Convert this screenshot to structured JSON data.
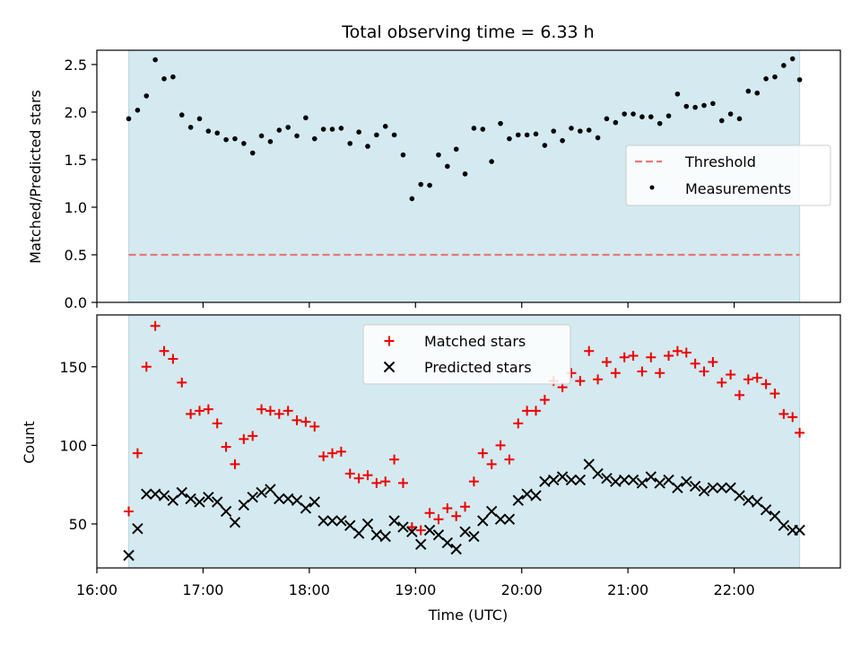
{
  "chart_data": [
    {
      "type": "scatter",
      "title": "Total observing time = 6.33 h",
      "xlabel": "",
      "ylabel": "Matched/Predicted stars",
      "ylim": [
        0,
        2.65
      ],
      "xlim": [
        "16:00",
        "23:00"
      ],
      "yticks": [
        "0.0",
        "0.5",
        "1.0",
        "1.5",
        "2.0",
        "2.5"
      ],
      "ytick_values": [
        0,
        0.5,
        1.0,
        1.5,
        2.0,
        2.5
      ],
      "shaded_span": [
        "16:18",
        "22:37"
      ],
      "shade_color": "#d4eaf0",
      "threshold": {
        "name": "Threshold",
        "value": 0.5,
        "color": "#e87878",
        "style": "dashed",
        "x_range": [
          "16:18",
          "22:37"
        ]
      },
      "legend": {
        "position": "center-right",
        "entries": [
          "Threshold",
          "Measurements"
        ]
      },
      "series": [
        {
          "name": "Measurements",
          "marker": "dot",
          "color": "#000000",
          "x": [
            "16:18",
            "16:23",
            "16:28",
            "16:33",
            "16:38",
            "16:43",
            "16:48",
            "16:53",
            "16:58",
            "17:03",
            "17:08",
            "17:13",
            "17:18",
            "17:23",
            "17:28",
            "17:33",
            "17:38",
            "17:43",
            "17:48",
            "17:53",
            "17:58",
            "18:03",
            "18:08",
            "18:13",
            "18:18",
            "18:23",
            "18:28",
            "18:33",
            "18:38",
            "18:43",
            "18:48",
            "18:53",
            "18:58",
            "19:03",
            "19:08",
            "19:13",
            "19:18",
            "19:23",
            "19:28",
            "19:33",
            "19:38",
            "19:43",
            "19:48",
            "19:53",
            "19:58",
            "20:03",
            "20:08",
            "20:13",
            "20:18",
            "20:23",
            "20:28",
            "20:33",
            "20:38",
            "20:43",
            "20:48",
            "20:53",
            "20:58",
            "21:03",
            "21:08",
            "21:13",
            "21:18",
            "21:23",
            "21:28",
            "21:33",
            "21:38",
            "21:43",
            "21:48",
            "21:53",
            "21:58",
            "22:03",
            "22:08",
            "22:13",
            "22:18",
            "22:23",
            "22:28",
            "22:33",
            "22:37"
          ],
          "values": [
            1.93,
            2.02,
            2.17,
            2.55,
            2.35,
            2.37,
            1.97,
            1.84,
            1.93,
            1.8,
            1.78,
            1.71,
            1.72,
            1.67,
            1.57,
            1.75,
            1.69,
            1.81,
            1.84,
            1.75,
            1.94,
            1.72,
            1.82,
            1.82,
            1.83,
            1.67,
            1.79,
            1.64,
            1.76,
            1.85,
            1.76,
            1.55,
            1.09,
            1.24,
            1.23,
            1.55,
            1.43,
            1.61,
            1.35,
            1.83,
            1.82,
            1.48,
            1.88,
            1.72,
            1.76,
            1.76,
            1.77,
            1.65,
            1.8,
            1.7,
            1.83,
            1.8,
            1.81,
            1.73,
            1.93,
            1.89,
            1.98,
            1.98,
            1.95,
            1.95,
            1.88,
            1.96,
            2.19,
            2.06,
            2.05,
            2.07,
            2.09,
            1.91,
            1.98,
            1.93,
            2.22,
            2.2,
            2.35,
            2.37,
            2.49,
            2.56,
            2.34
          ]
        }
      ]
    },
    {
      "type": "scatter",
      "title": "",
      "xlabel": "Time (UTC)",
      "ylabel": "Count",
      "ylim": [
        22,
        183
      ],
      "xlim": [
        "16:00",
        "23:00"
      ],
      "xticks": [
        "16:00",
        "17:00",
        "18:00",
        "19:00",
        "20:00",
        "21:00",
        "22:00"
      ],
      "yticks": [
        "50",
        "100",
        "150"
      ],
      "ytick_values": [
        50,
        100,
        150
      ],
      "shaded_span": [
        "16:18",
        "22:37"
      ],
      "shade_color": "#d4eaf0",
      "legend": {
        "position": "top-center",
        "entries": [
          "Matched stars",
          "Predicted stars"
        ]
      },
      "series": [
        {
          "name": "Matched stars",
          "marker": "plus",
          "color": "#ee0000",
          "x": [
            "16:18",
            "16:23",
            "16:28",
            "16:33",
            "16:38",
            "16:43",
            "16:48",
            "16:53",
            "16:58",
            "17:03",
            "17:08",
            "17:13",
            "17:18",
            "17:23",
            "17:28",
            "17:33",
            "17:38",
            "17:43",
            "17:48",
            "17:53",
            "17:58",
            "18:03",
            "18:08",
            "18:13",
            "18:18",
            "18:23",
            "18:28",
            "18:33",
            "18:38",
            "18:43",
            "18:48",
            "18:53",
            "18:58",
            "19:03",
            "19:08",
            "19:13",
            "19:18",
            "19:23",
            "19:28",
            "19:33",
            "19:38",
            "19:43",
            "19:48",
            "19:53",
            "19:58",
            "20:03",
            "20:08",
            "20:13",
            "20:18",
            "20:23",
            "20:28",
            "20:33",
            "20:38",
            "20:43",
            "20:48",
            "20:53",
            "20:58",
            "21:03",
            "21:08",
            "21:13",
            "21:18",
            "21:23",
            "21:28",
            "21:33",
            "21:38",
            "21:43",
            "21:48",
            "21:53",
            "21:58",
            "22:03",
            "22:08",
            "22:13",
            "22:18",
            "22:23",
            "22:28",
            "22:33",
            "22:37"
          ],
          "values": [
            58,
            95,
            150,
            176,
            160,
            155,
            140,
            120,
            122,
            123,
            114,
            99,
            88,
            104,
            106,
            123,
            122,
            120,
            122,
            116,
            115,
            112,
            93,
            95,
            96,
            82,
            79,
            81,
            76,
            77,
            91,
            76,
            48,
            46,
            57,
            53,
            60,
            55,
            61,
            77,
            95,
            88,
            100,
            91,
            114,
            122,
            122,
            129,
            141,
            137,
            146,
            141,
            160,
            142,
            153,
            146,
            156,
            157,
            147,
            156,
            146,
            157,
            160,
            159,
            152,
            147,
            153,
            140,
            145,
            132,
            142,
            143,
            139,
            133,
            120,
            118,
            108
          ]
        },
        {
          "name": "Predicted stars",
          "marker": "x",
          "color": "#000000",
          "x": [
            "16:18",
            "16:23",
            "16:28",
            "16:33",
            "16:38",
            "16:43",
            "16:48",
            "16:53",
            "16:58",
            "17:03",
            "17:08",
            "17:13",
            "17:18",
            "17:23",
            "17:28",
            "17:33",
            "17:38",
            "17:43",
            "17:48",
            "17:53",
            "17:58",
            "18:03",
            "18:08",
            "18:13",
            "18:18",
            "18:23",
            "18:28",
            "18:33",
            "18:38",
            "18:43",
            "18:48",
            "18:53",
            "18:58",
            "19:03",
            "19:08",
            "19:13",
            "19:18",
            "19:23",
            "19:28",
            "19:33",
            "19:38",
            "19:43",
            "19:48",
            "19:53",
            "19:58",
            "20:03",
            "20:08",
            "20:13",
            "20:18",
            "20:23",
            "20:28",
            "20:33",
            "20:38",
            "20:43",
            "20:48",
            "20:53",
            "20:58",
            "21:03",
            "21:08",
            "21:13",
            "21:18",
            "21:23",
            "21:28",
            "21:33",
            "21:38",
            "21:43",
            "21:48",
            "21:53",
            "21:58",
            "22:03",
            "22:08",
            "22:13",
            "22:18",
            "22:23",
            "22:28",
            "22:33",
            "22:37"
          ],
          "values": [
            30,
            47,
            69,
            69,
            68,
            65,
            70,
            66,
            64,
            67,
            64,
            58,
            51,
            62,
            67,
            70,
            72,
            66,
            66,
            65,
            60,
            64,
            52,
            52,
            52,
            49,
            44,
            50,
            43,
            42,
            52,
            48,
            45,
            37,
            46,
            43,
            38,
            34,
            45,
            42,
            52,
            58,
            53,
            53,
            65,
            69,
            68,
            77,
            78,
            80,
            78,
            78,
            88,
            82,
            79,
            77,
            78,
            78,
            76,
            80,
            76,
            78,
            73,
            77,
            74,
            71,
            73,
            73,
            73,
            68,
            65,
            64,
            59,
            55,
            49,
            46,
            46
          ]
        }
      ]
    }
  ]
}
